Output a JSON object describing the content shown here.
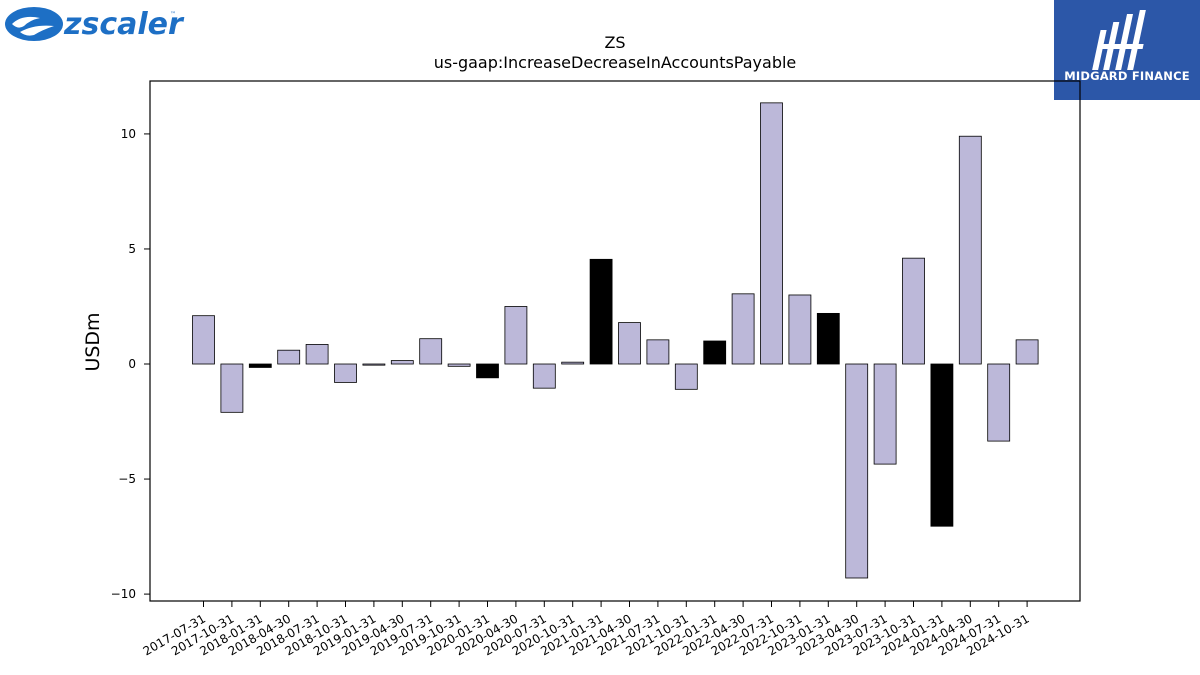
{
  "brand": {
    "left_logo_text": "zscaler",
    "right_logo_text": "MIDGARD FINANCE"
  },
  "colors": {
    "bar_positive": "#bcb8d9",
    "bar_highlight": "#000000",
    "axis": "#000000",
    "brand_blue": "#1d6fc5",
    "midgard_blue": "#2c57a8"
  },
  "chart_data": {
    "type": "bar",
    "title": "ZS",
    "subtitle": "us-gaap:IncreaseDecreaseInAccountsPayable",
    "xlabel": "",
    "ylabel": "USDm",
    "ylim": [
      -10.3,
      12.3
    ],
    "yticks": [
      -10,
      -5,
      0,
      5,
      10
    ],
    "ytick_labels": [
      "−10",
      "−5",
      "0",
      "5",
      "10"
    ],
    "grid": false,
    "categories": [
      "2017-07-31",
      "2017-10-31",
      "2018-01-31",
      "2018-04-30",
      "2018-07-31",
      "2018-10-31",
      "2019-01-31",
      "2019-04-30",
      "2019-07-31",
      "2019-10-31",
      "2020-01-31",
      "2020-04-30",
      "2020-07-31",
      "2020-10-31",
      "2021-01-31",
      "2021-04-30",
      "2021-07-31",
      "2021-10-31",
      "2022-01-31",
      "2022-04-30",
      "2022-07-31",
      "2022-10-31",
      "2023-01-31",
      "2023-04-30",
      "2023-07-31",
      "2023-10-31",
      "2024-01-31",
      "2024-04-30",
      "2024-07-31",
      "2024-10-31"
    ],
    "values": [
      2.1,
      -2.1,
      -0.15,
      0.6,
      0.85,
      -0.8,
      -0.05,
      0.15,
      1.1,
      -0.1,
      -0.6,
      2.5,
      -1.05,
      0.08,
      4.55,
      1.8,
      1.05,
      -1.1,
      1.0,
      3.05,
      11.35,
      3.0,
      2.2,
      -9.3,
      -4.35,
      4.6,
      -7.05,
      9.9,
      -3.35,
      1.05
    ],
    "highlight": [
      false,
      false,
      true,
      false,
      false,
      false,
      false,
      false,
      false,
      false,
      true,
      false,
      false,
      false,
      true,
      false,
      false,
      false,
      true,
      false,
      false,
      false,
      true,
      false,
      false,
      false,
      true,
      false,
      false,
      false
    ]
  }
}
